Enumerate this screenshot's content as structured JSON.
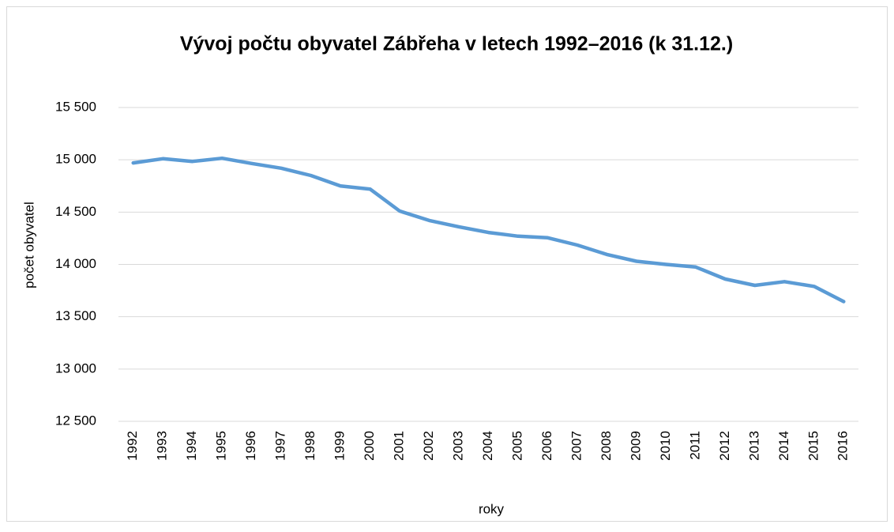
{
  "chart_data": {
    "type": "line",
    "title": "Vývoj počtu obyvatel Zábřeha v letech 1992–2016 (k 31.12.)",
    "xlabel": "roky",
    "ylabel": "počet obyvatel",
    "categories": [
      "1992",
      "1993",
      "1994",
      "1995",
      "1996",
      "1997",
      "1998",
      "1999",
      "2000",
      "2001",
      "2002",
      "2003",
      "2004",
      "2005",
      "2006",
      "2007",
      "2008",
      "2009",
      "2010",
      "2011",
      "2012",
      "2013",
      "2014",
      "2015",
      "2016"
    ],
    "series": [
      {
        "name": "počet obyvatel",
        "color": "#5b9bd5",
        "values": [
          14970,
          15010,
          14985,
          15015,
          14965,
          14920,
          14850,
          14750,
          14720,
          14510,
          14420,
          14360,
          14305,
          14270,
          14255,
          14185,
          14095,
          14030,
          14000,
          13975,
          13860,
          13800,
          13835,
          13790,
          13645
        ]
      }
    ],
    "ylim": [
      12500,
      15500
    ],
    "yticks": [
      {
        "value": 12500,
        "label": "12 500"
      },
      {
        "value": 13000,
        "label": "13 000"
      },
      {
        "value": 13500,
        "label": "13 500"
      },
      {
        "value": 14000,
        "label": "14 000"
      },
      {
        "value": 14500,
        "label": "14 500"
      },
      {
        "value": 15000,
        "label": "15 000"
      },
      {
        "value": 15500,
        "label": "15 500"
      }
    ],
    "grid": true
  }
}
